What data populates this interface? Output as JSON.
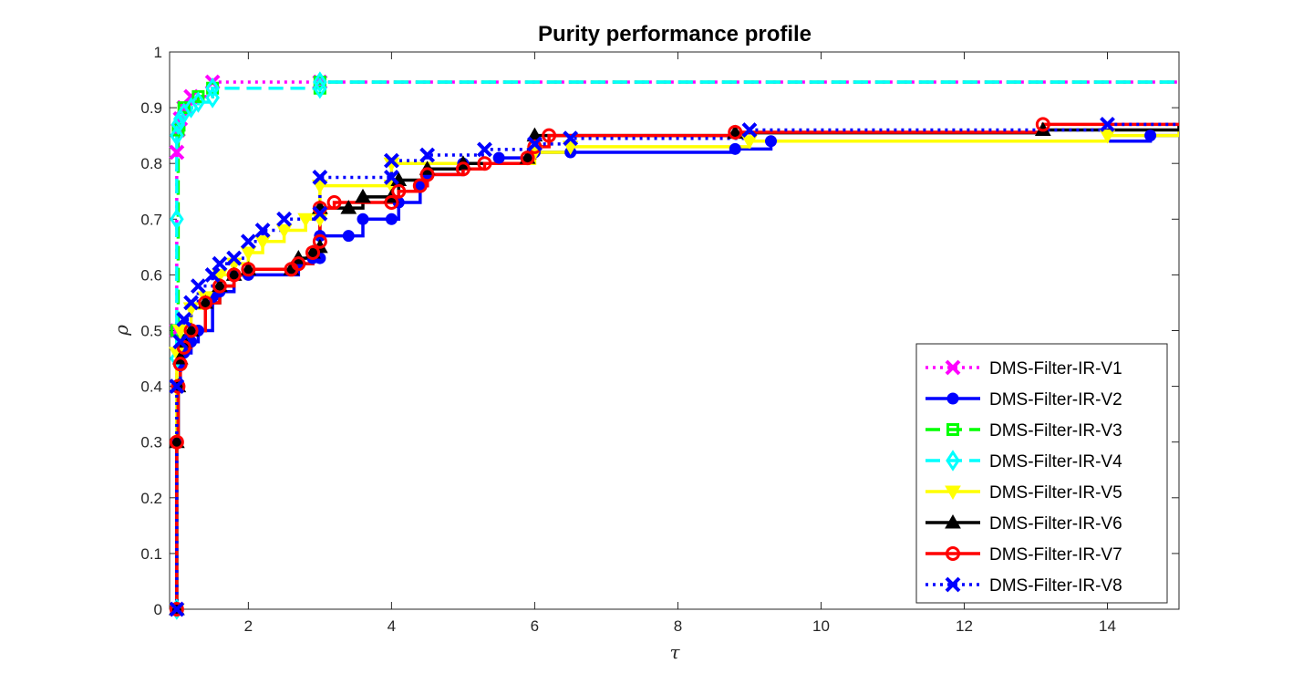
{
  "chart_data": {
    "type": "line",
    "title": "Purity performance profile",
    "xlabel": "τ",
    "ylabel": "ρ",
    "xlim": [
      0.9,
      15
    ],
    "ylim": [
      0,
      1
    ],
    "xticks": [
      2,
      4,
      6,
      8,
      10,
      12,
      14
    ],
    "yticks": [
      0,
      0.1,
      0.2,
      0.3,
      0.4,
      0.5,
      0.6,
      0.7,
      0.8,
      0.9,
      1
    ],
    "grid": false,
    "legend_position": "bottom-right",
    "series": [
      {
        "name": "DMS-Filter-IR-V1",
        "color": "#ff00ff",
        "line": "dotted",
        "marker": "x",
        "points": [
          [
            1.0,
            0.0
          ],
          [
            1.0,
            0.5
          ],
          [
            1.0,
            0.82
          ],
          [
            1.02,
            0.86
          ],
          [
            1.05,
            0.88
          ],
          [
            1.1,
            0.9
          ],
          [
            1.2,
            0.92
          ],
          [
            1.5,
            0.946
          ],
          [
            3.0,
            0.946
          ],
          [
            15,
            0.946
          ]
        ]
      },
      {
        "name": "DMS-Filter-IR-V2",
        "color": "#0000ff",
        "line": "solid",
        "marker": "circle-filled",
        "points": [
          [
            1.0,
            0.0
          ],
          [
            1.0,
            0.3
          ],
          [
            1.02,
            0.4
          ],
          [
            1.05,
            0.44
          ],
          [
            1.1,
            0.46
          ],
          [
            1.2,
            0.48
          ],
          [
            1.3,
            0.5
          ],
          [
            1.5,
            0.56
          ],
          [
            1.6,
            0.57
          ],
          [
            1.8,
            0.6
          ],
          [
            2.0,
            0.6
          ],
          [
            2.7,
            0.62
          ],
          [
            2.9,
            0.63
          ],
          [
            3.0,
            0.63
          ],
          [
            3.0,
            0.67
          ],
          [
            3.4,
            0.67
          ],
          [
            3.6,
            0.7
          ],
          [
            4.0,
            0.7
          ],
          [
            4.1,
            0.73
          ],
          [
            4.4,
            0.76
          ],
          [
            4.5,
            0.78
          ],
          [
            5.0,
            0.8
          ],
          [
            5.5,
            0.81
          ],
          [
            6.0,
            0.82
          ],
          [
            6.5,
            0.82
          ],
          [
            8.8,
            0.826
          ],
          [
            9.3,
            0.84
          ],
          [
            14.6,
            0.85
          ],
          [
            15,
            0.85
          ]
        ]
      },
      {
        "name": "DMS-Filter-IR-V3",
        "color": "#00ff00",
        "line": "dashed",
        "marker": "square-open",
        "points": [
          [
            1.0,
            0.0
          ],
          [
            1.0,
            0.5
          ],
          [
            1.02,
            0.86
          ],
          [
            1.1,
            0.9
          ],
          [
            1.3,
            0.92
          ],
          [
            1.5,
            0.935
          ],
          [
            3.0,
            0.935
          ],
          [
            3.0,
            0.946
          ],
          [
            15,
            0.946
          ]
        ]
      },
      {
        "name": "DMS-Filter-IR-V4",
        "color": "#00ffff",
        "line": "dashed",
        "marker": "diamond-open",
        "points": [
          [
            1.0,
            0.0
          ],
          [
            1.0,
            0.45
          ],
          [
            1.0,
            0.7
          ],
          [
            1.0,
            0.85
          ],
          [
            1.02,
            0.87
          ],
          [
            1.05,
            0.88
          ],
          [
            1.1,
            0.89
          ],
          [
            1.2,
            0.9
          ],
          [
            1.3,
            0.91
          ],
          [
            1.5,
            0.918
          ],
          [
            1.5,
            0.935
          ],
          [
            3.0,
            0.935
          ],
          [
            3.0,
            0.946
          ],
          [
            15,
            0.946
          ]
        ]
      },
      {
        "name": "DMS-Filter-IR-V5",
        "color": "#ffff00",
        "line": "solid",
        "marker": "triangle-down-filled",
        "points": [
          [
            1.0,
            0.0
          ],
          [
            1.0,
            0.46
          ],
          [
            1.05,
            0.5
          ],
          [
            1.2,
            0.54
          ],
          [
            1.4,
            0.56
          ],
          [
            1.6,
            0.6
          ],
          [
            1.8,
            0.62
          ],
          [
            2.0,
            0.64
          ],
          [
            2.2,
            0.66
          ],
          [
            2.5,
            0.68
          ],
          [
            2.8,
            0.7
          ],
          [
            3.0,
            0.7
          ],
          [
            3.0,
            0.76
          ],
          [
            4.0,
            0.76
          ],
          [
            4.0,
            0.8
          ],
          [
            6.0,
            0.82
          ],
          [
            6.5,
            0.83
          ],
          [
            9.0,
            0.84
          ],
          [
            14,
            0.85
          ],
          [
            15,
            0.86
          ]
        ]
      },
      {
        "name": "DMS-Filter-IR-V6",
        "color": "#000000",
        "line": "solid",
        "marker": "triangle-up-filled",
        "points": [
          [
            1.0,
            0.0
          ],
          [
            1.0,
            0.3
          ],
          [
            1.02,
            0.4
          ],
          [
            1.05,
            0.45
          ],
          [
            1.1,
            0.48
          ],
          [
            1.2,
            0.5
          ],
          [
            1.4,
            0.55
          ],
          [
            1.6,
            0.58
          ],
          [
            1.8,
            0.6
          ],
          [
            2.0,
            0.61
          ],
          [
            2.6,
            0.61
          ],
          [
            2.7,
            0.63
          ],
          [
            2.9,
            0.64
          ],
          [
            3.0,
            0.65
          ],
          [
            3.0,
            0.72
          ],
          [
            3.4,
            0.72
          ],
          [
            3.6,
            0.74
          ],
          [
            4.0,
            0.74
          ],
          [
            4.1,
            0.77
          ],
          [
            4.5,
            0.79
          ],
          [
            5.0,
            0.8
          ],
          [
            5.9,
            0.81
          ],
          [
            6.0,
            0.85
          ],
          [
            8.8,
            0.855
          ],
          [
            13.1,
            0.86
          ],
          [
            15,
            0.87
          ]
        ]
      },
      {
        "name": "DMS-Filter-IR-V7",
        "color": "#ff0000",
        "line": "solid",
        "marker": "circle-open",
        "points": [
          [
            1.0,
            0.0
          ],
          [
            1.0,
            0.3
          ],
          [
            1.02,
            0.4
          ],
          [
            1.05,
            0.44
          ],
          [
            1.1,
            0.47
          ],
          [
            1.2,
            0.5
          ],
          [
            1.4,
            0.55
          ],
          [
            1.6,
            0.58
          ],
          [
            1.8,
            0.6
          ],
          [
            2.0,
            0.61
          ],
          [
            2.6,
            0.61
          ],
          [
            2.7,
            0.62
          ],
          [
            2.9,
            0.64
          ],
          [
            3.0,
            0.66
          ],
          [
            3.0,
            0.72
          ],
          [
            3.2,
            0.73
          ],
          [
            4.0,
            0.73
          ],
          [
            4.1,
            0.75
          ],
          [
            4.4,
            0.76
          ],
          [
            4.5,
            0.78
          ],
          [
            5.0,
            0.79
          ],
          [
            5.3,
            0.8
          ],
          [
            5.9,
            0.81
          ],
          [
            6.0,
            0.83
          ],
          [
            6.2,
            0.85
          ],
          [
            8.8,
            0.856
          ],
          [
            13.1,
            0.87
          ],
          [
            15,
            0.87
          ]
        ]
      },
      {
        "name": "DMS-Filter-IR-V8",
        "color": "#0000ff",
        "line": "dotted",
        "marker": "x",
        "points": [
          [
            1.0,
            0.0
          ],
          [
            1.0,
            0.4
          ],
          [
            1.05,
            0.48
          ],
          [
            1.1,
            0.52
          ],
          [
            1.2,
            0.55
          ],
          [
            1.3,
            0.58
          ],
          [
            1.5,
            0.6
          ],
          [
            1.6,
            0.62
          ],
          [
            1.8,
            0.63
          ],
          [
            2.0,
            0.66
          ],
          [
            2.2,
            0.68
          ],
          [
            2.5,
            0.7
          ],
          [
            3.0,
            0.71
          ],
          [
            3.0,
            0.775
          ],
          [
            4.0,
            0.775
          ],
          [
            4.0,
            0.805
          ],
          [
            4.5,
            0.815
          ],
          [
            5.3,
            0.825
          ],
          [
            6.0,
            0.835
          ],
          [
            6.5,
            0.845
          ],
          [
            9.0,
            0.86
          ],
          [
            14,
            0.87
          ],
          [
            15,
            0.87
          ]
        ]
      }
    ]
  }
}
